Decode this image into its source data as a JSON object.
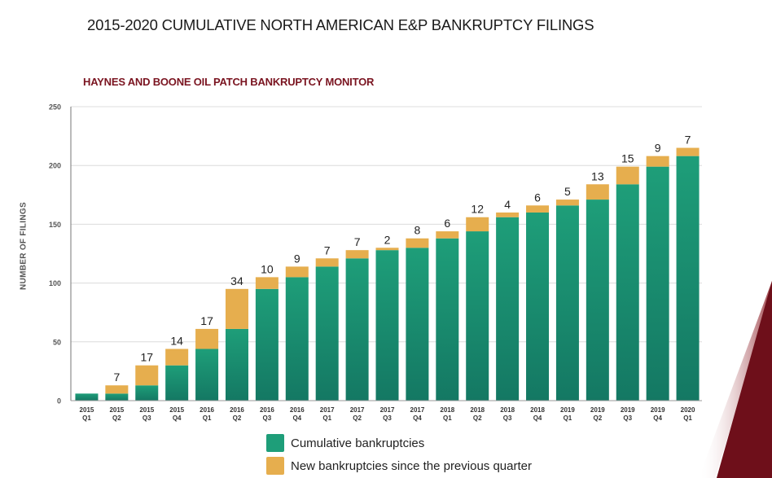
{
  "page": {
    "title": "2015-2020 CUMULATIVE NORTH AMERICAN E&P BANKRUPTCY FILINGS",
    "subtitle": "HAYNES AND BOONE OIL PATCH BANKRUPTCY MONITOR"
  },
  "colors": {
    "cumulative": "#1e9e79",
    "cumulative_dark": "#147863",
    "new": "#e6ae4e",
    "subtitle": "#7a1420",
    "accent": "#6e0f1a"
  },
  "chart_data": {
    "type": "bar",
    "stacked": true,
    "title": "2015-2020 CUMULATIVE NORTH AMERICAN E&P BANKRUPTCY FILINGS",
    "subtitle": "HAYNES AND BOONE OIL PATCH BANKRUPTCY MONITOR",
    "xlabel": "",
    "ylabel": "NUMBER OF FILINGS",
    "ylim": [
      0,
      250
    ],
    "yticks": [
      0,
      50,
      100,
      150,
      200,
      250
    ],
    "grid": true,
    "legend_position": "bottom",
    "categories": [
      [
        "2015",
        "Q1"
      ],
      [
        "2015",
        "Q2"
      ],
      [
        "2015",
        "Q3"
      ],
      [
        "2015",
        "Q4"
      ],
      [
        "2016",
        "Q1"
      ],
      [
        "2016",
        "Q2"
      ],
      [
        "2016",
        "Q3"
      ],
      [
        "2016",
        "Q4"
      ],
      [
        "2017",
        "Q1"
      ],
      [
        "2017",
        "Q2"
      ],
      [
        "2017",
        "Q3"
      ],
      [
        "2017",
        "Q4"
      ],
      [
        "2018",
        "Q1"
      ],
      [
        "2018",
        "Q2"
      ],
      [
        "2018",
        "Q3"
      ],
      [
        "2018",
        "Q4"
      ],
      [
        "2019",
        "Q1"
      ],
      [
        "2019",
        "Q2"
      ],
      [
        "2019",
        "Q3"
      ],
      [
        "2019",
        "Q4"
      ],
      [
        "2020",
        "Q1"
      ]
    ],
    "series": [
      {
        "name": "Cumulative bankruptcies",
        "values": [
          6,
          6,
          13,
          30,
          44,
          61,
          95,
          105,
          114,
          121,
          128,
          130,
          138,
          144,
          156,
          160,
          166,
          171,
          184,
          199,
          208
        ]
      },
      {
        "name": "New bankruptcies since the previous quarter",
        "values": [
          0,
          7,
          17,
          14,
          17,
          34,
          10,
          9,
          7,
          7,
          2,
          8,
          6,
          12,
          4,
          6,
          5,
          13,
          15,
          9,
          7
        ]
      }
    ],
    "data_labels": [
      "",
      "7",
      "17",
      "14",
      "17",
      "34",
      "10",
      "9",
      "7",
      "7",
      "2",
      "8",
      "6",
      "12",
      "4",
      "6",
      "5",
      "13",
      "15",
      "9",
      "7"
    ]
  },
  "legend": [
    {
      "label": "Cumulative bankruptcies"
    },
    {
      "label": "New bankruptcies since the previous quarter"
    }
  ]
}
